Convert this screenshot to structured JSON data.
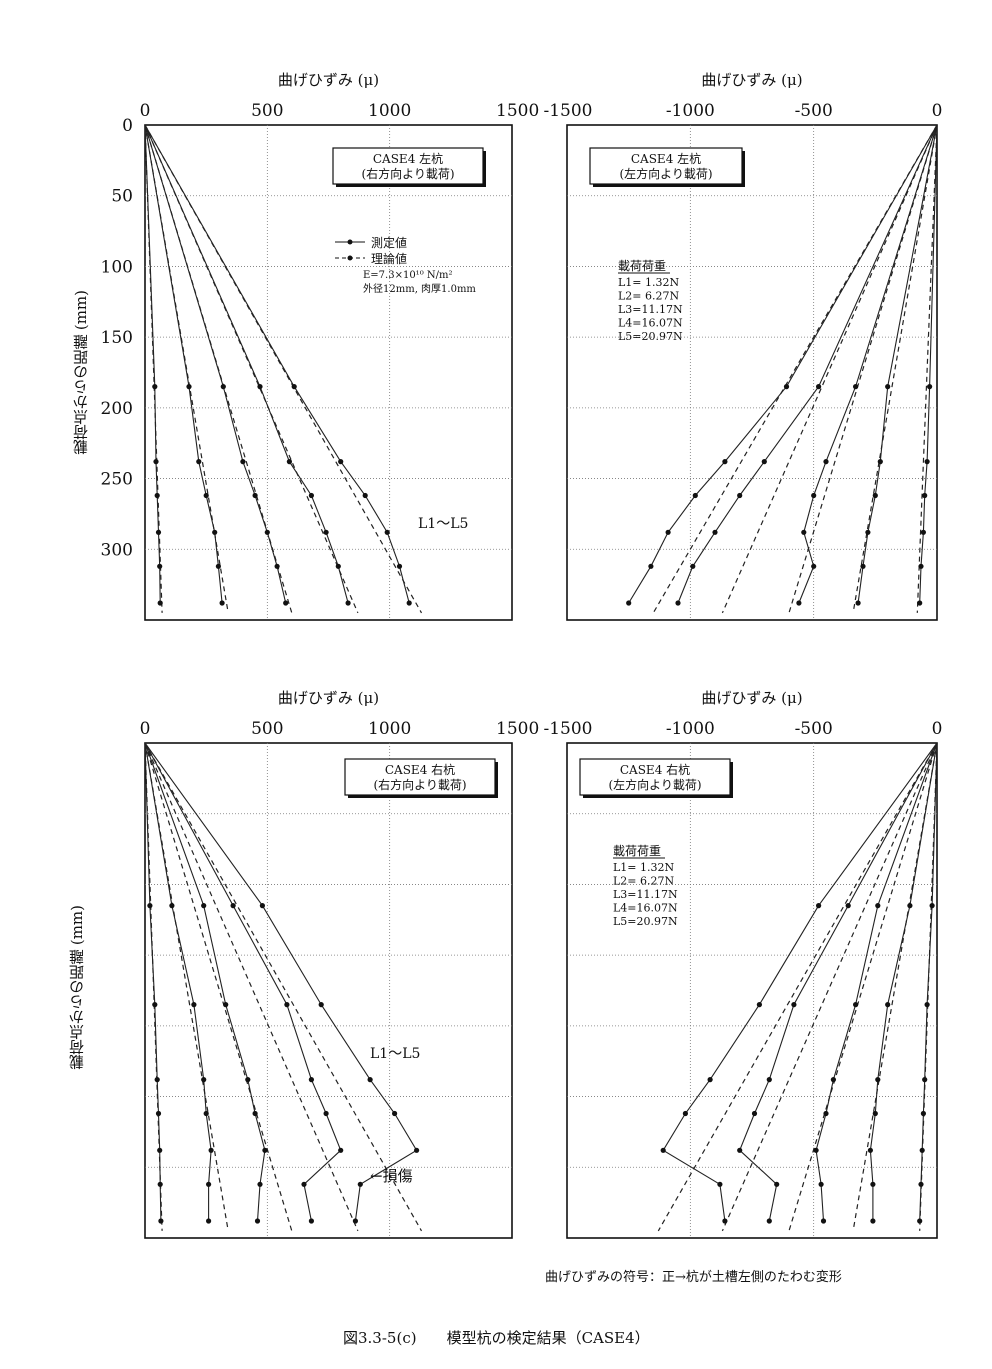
{
  "figure": {
    "caption": "図3.3-5(c)　　模型杭の検定結果（CASE4）",
    "sign_note": "曲げひずみの符号：正→杭が土槽左側のたわむ変形",
    "ylabel": "載荷点からの距離 (mm)"
  },
  "chart_data": [
    {
      "type": "line",
      "panel": "top-left",
      "title": "CASE4 左杭\n(右方向より載荷)",
      "xlabel": "曲げひずみ (μ)",
      "ylabel": "載荷点からの距離 (mm)",
      "xlim": [
        0,
        1500
      ],
      "ylim": [
        350,
        0
      ],
      "xticks": [
        "0",
        "500",
        "1000",
        "1500"
      ],
      "yticks": [
        "0",
        "50",
        "100",
        "150",
        "200",
        "250",
        "300"
      ],
      "legend": {
        "measured": "測定値",
        "theoretical": "理論値"
      },
      "params": "E=7.3×10¹⁰ N/m²\n外径12mm, 肉厚1.0mm",
      "annotation": "L1〜L5",
      "grid": true,
      "measured": [
        {
          "name": "L1",
          "points": [
            [
              40,
              185
            ],
            [
              45,
              238
            ],
            [
              50,
              262
            ],
            [
              55,
              288
            ],
            [
              60,
              312
            ],
            [
              62,
              338
            ]
          ]
        },
        {
          "name": "L2",
          "points": [
            [
              180,
              185
            ],
            [
              220,
              238
            ],
            [
              250,
              262
            ],
            [
              285,
              288
            ],
            [
              300,
              312
            ],
            [
              315,
              338
            ]
          ]
        },
        {
          "name": "L3",
          "points": [
            [
              320,
              185
            ],
            [
              400,
              238
            ],
            [
              450,
              262
            ],
            [
              500,
              288
            ],
            [
              540,
              312
            ],
            [
              575,
              338
            ]
          ]
        },
        {
          "name": "L4",
          "points": [
            [
              470,
              185
            ],
            [
              590,
              238
            ],
            [
              680,
              262
            ],
            [
              740,
              288
            ],
            [
              790,
              312
            ],
            [
              830,
              338
            ]
          ]
        },
        {
          "name": "L5",
          "points": [
            [
              610,
              185
            ],
            [
              800,
              238
            ],
            [
              900,
              262
            ],
            [
              990,
              288
            ],
            [
              1040,
              312
            ],
            [
              1080,
              338
            ]
          ]
        }
      ],
      "theoretical": [
        {
          "name": "L1",
          "points": [
            [
              0,
              0
            ],
            [
              70,
              345
            ]
          ]
        },
        {
          "name": "L2",
          "points": [
            [
              0,
              0
            ],
            [
              340,
              345
            ]
          ]
        },
        {
          "name": "L3",
          "points": [
            [
              0,
              0
            ],
            [
              600,
              345
            ]
          ]
        },
        {
          "name": "L4",
          "points": [
            [
              0,
              0
            ],
            [
              870,
              345
            ]
          ]
        },
        {
          "name": "L5",
          "points": [
            [
              0,
              0
            ],
            [
              1130,
              345
            ]
          ]
        }
      ]
    },
    {
      "type": "line",
      "panel": "top-right",
      "title": "CASE4 左杭\n(左方向より載荷)",
      "xlabel": "曲げひずみ (μ)",
      "xlim": [
        -1500,
        0
      ],
      "ylim": [
        350,
        0
      ],
      "xticks": [
        "-1500",
        "-1000",
        "-500",
        "0"
      ],
      "load_heading": "載荷荷重",
      "loads": [
        "L1= 1.32N",
        "L2= 6.27N",
        "L3=11.17N",
        "L4=16.07N",
        "L5=20.97N"
      ],
      "grid": true,
      "measured": [
        {
          "name": "L1",
          "points": [
            [
              -30,
              185
            ],
            [
              -40,
              238
            ],
            [
              -50,
              262
            ],
            [
              -55,
              288
            ],
            [
              -65,
              312
            ],
            [
              -70,
              338
            ]
          ]
        },
        {
          "name": "L2",
          "points": [
            [
              -200,
              185
            ],
            [
              -230,
              238
            ],
            [
              -250,
              262
            ],
            [
              -280,
              288
            ],
            [
              -300,
              312
            ],
            [
              -320,
              338
            ]
          ]
        },
        {
          "name": "L3",
          "points": [
            [
              -330,
              185
            ],
            [
              -450,
              238
            ],
            [
              -500,
              262
            ],
            [
              -540,
              288
            ],
            [
              -500,
              312
            ],
            [
              -560,
              338
            ]
          ]
        },
        {
          "name": "L4",
          "points": [
            [
              -480,
              185
            ],
            [
              -700,
              238
            ],
            [
              -800,
              262
            ],
            [
              -900,
              288
            ],
            [
              -990,
              312
            ],
            [
              -1050,
              338
            ]
          ]
        },
        {
          "name": "L5",
          "points": [
            [
              -610,
              185
            ],
            [
              -860,
              238
            ],
            [
              -980,
              262
            ],
            [
              -1090,
              288
            ],
            [
              -1160,
              312
            ],
            [
              -1250,
              338
            ]
          ]
        }
      ],
      "theoretical": [
        {
          "name": "L1",
          "points": [
            [
              0,
              0
            ],
            [
              -80,
              345
            ]
          ]
        },
        {
          "name": "L2",
          "points": [
            [
              0,
              0
            ],
            [
              -340,
              345
            ]
          ]
        },
        {
          "name": "L3",
          "points": [
            [
              0,
              0
            ],
            [
              -600,
              345
            ]
          ]
        },
        {
          "name": "L4",
          "points": [
            [
              0,
              0
            ],
            [
              -870,
              345
            ]
          ]
        },
        {
          "name": "L5",
          "points": [
            [
              0,
              0
            ],
            [
              -1150,
              345
            ]
          ]
        }
      ]
    },
    {
      "type": "line",
      "panel": "bottom-left",
      "title": "CASE4 右杭\n(右方向より載荷)",
      "xlabel": "曲げひずみ (μ)",
      "ylabel": "載荷点からの距離 (mm)",
      "xlim": [
        0,
        1500
      ],
      "ylim": [
        350,
        0
      ],
      "xticks": [
        "0",
        "500",
        "1000",
        "1500"
      ],
      "annotation": "L1〜L5",
      "damage_label": "←損傷",
      "grid": true,
      "measured": [
        {
          "name": "L1",
          "points": [
            [
              20,
              115
            ],
            [
              40,
              185
            ],
            [
              50,
              238
            ],
            [
              55,
              262
            ],
            [
              60,
              288
            ],
            [
              62,
              312
            ],
            [
              65,
              338
            ]
          ]
        },
        {
          "name": "L2",
          "points": [
            [
              110,
              115
            ],
            [
              200,
              185
            ],
            [
              240,
              238
            ],
            [
              250,
              262
            ],
            [
              270,
              288
            ],
            [
              260,
              312
            ],
            [
              260,
              338
            ]
          ]
        },
        {
          "name": "L3",
          "points": [
            [
              240,
              115
            ],
            [
              330,
              185
            ],
            [
              420,
              238
            ],
            [
              450,
              262
            ],
            [
              490,
              288
            ],
            [
              470,
              312
            ],
            [
              460,
              338
            ]
          ]
        },
        {
          "name": "L4",
          "points": [
            [
              360,
              115
            ],
            [
              580,
              185
            ],
            [
              680,
              238
            ],
            [
              740,
              262
            ],
            [
              800,
              288
            ],
            [
              650,
              312
            ],
            [
              680,
              338
            ]
          ]
        },
        {
          "name": "L5",
          "points": [
            [
              480,
              115
            ],
            [
              720,
              185
            ],
            [
              920,
              238
            ],
            [
              1020,
              262
            ],
            [
              1110,
              288
            ],
            [
              880,
              312
            ],
            [
              860,
              338
            ]
          ]
        }
      ],
      "theoretical": [
        {
          "name": "L1",
          "points": [
            [
              0,
              0
            ],
            [
              70,
              345
            ]
          ]
        },
        {
          "name": "L2",
          "points": [
            [
              0,
              0
            ],
            [
              340,
              345
            ]
          ]
        },
        {
          "name": "L3",
          "points": [
            [
              0,
              0
            ],
            [
              600,
              345
            ]
          ]
        },
        {
          "name": "L4",
          "points": [
            [
              0,
              0
            ],
            [
              870,
              345
            ]
          ]
        },
        {
          "name": "L5",
          "points": [
            [
              0,
              0
            ],
            [
              1130,
              345
            ]
          ]
        }
      ]
    },
    {
      "type": "line",
      "panel": "bottom-right",
      "title": "CASE4 右杭\n(左方向より載荷)",
      "xlabel": "曲げひずみ (μ)",
      "xlim": [
        -1500,
        0
      ],
      "ylim": [
        350,
        0
      ],
      "xticks": [
        "-1500",
        "-1000",
        "-500",
        "0"
      ],
      "load_heading": "載荷荷重",
      "loads": [
        "L1= 1.32N",
        "L2= 6.27N",
        "L3=11.17N",
        "L4=16.07N",
        "L5=20.97N"
      ],
      "grid": true,
      "measured": [
        {
          "name": "L1",
          "points": [
            [
              -20,
              115
            ],
            [
              -40,
              185
            ],
            [
              -50,
              238
            ],
            [
              -55,
              262
            ],
            [
              -60,
              288
            ],
            [
              -65,
              312
            ],
            [
              -70,
              338
            ]
          ]
        },
        {
          "name": "L2",
          "points": [
            [
              -110,
              115
            ],
            [
              -200,
              185
            ],
            [
              -240,
              238
            ],
            [
              -250,
              262
            ],
            [
              -270,
              288
            ],
            [
              -260,
              312
            ],
            [
              -260,
              338
            ]
          ]
        },
        {
          "name": "L3",
          "points": [
            [
              -240,
              115
            ],
            [
              -330,
              185
            ],
            [
              -420,
              238
            ],
            [
              -450,
              262
            ],
            [
              -490,
              288
            ],
            [
              -470,
              312
            ],
            [
              -460,
              338
            ]
          ]
        },
        {
          "name": "L4",
          "points": [
            [
              -360,
              115
            ],
            [
              -580,
              185
            ],
            [
              -680,
              238
            ],
            [
              -740,
              262
            ],
            [
              -800,
              288
            ],
            [
              -650,
              312
            ],
            [
              -680,
              338
            ]
          ]
        },
        {
          "name": "L5",
          "points": [
            [
              -480,
              115
            ],
            [
              -720,
              185
            ],
            [
              -920,
              238
            ],
            [
              -1020,
              262
            ],
            [
              -1110,
              288
            ],
            [
              -880,
              312
            ],
            [
              -860,
              338
            ]
          ]
        }
      ],
      "theoretical": [
        {
          "name": "L1",
          "points": [
            [
              0,
              0
            ],
            [
              -70,
              345
            ]
          ]
        },
        {
          "name": "L2",
          "points": [
            [
              0,
              0
            ],
            [
              -340,
              345
            ]
          ]
        },
        {
          "name": "L3",
          "points": [
            [
              0,
              0
            ],
            [
              -600,
              345
            ]
          ]
        },
        {
          "name": "L4",
          "points": [
            [
              0,
              0
            ],
            [
              -870,
              345
            ]
          ]
        },
        {
          "name": "L5",
          "points": [
            [
              0,
              0
            ],
            [
              -1130,
              345
            ]
          ]
        }
      ]
    }
  ]
}
